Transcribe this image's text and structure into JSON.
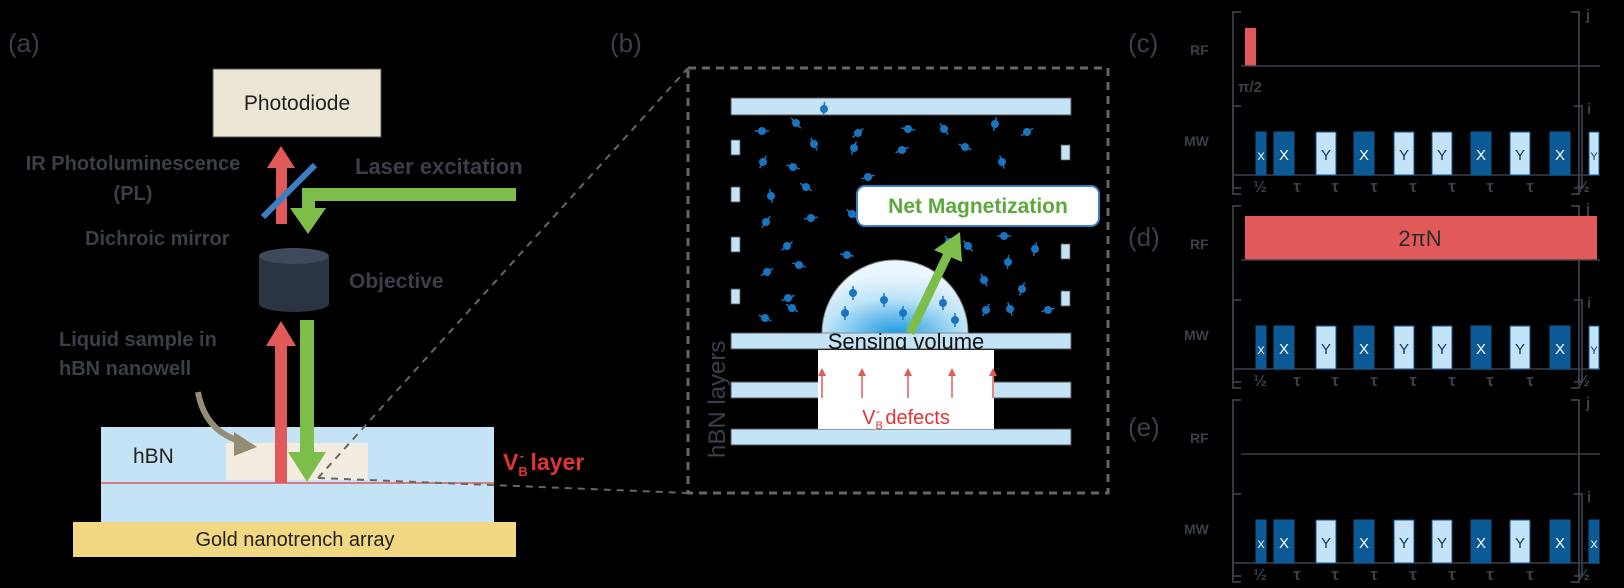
{
  "panel_a": {
    "label": "(a)",
    "photodiode": "Photodiode",
    "ir_pl_line1": "IR Photoluminescence",
    "ir_pl_line2": "(PL)",
    "laser": "Laser excitation",
    "dichroic": "Dichroic mirror",
    "objective": "Objective",
    "liquid_line1": "Liquid sample in",
    "liquid_line2": "hBN nanowell",
    "hbn": "hBN",
    "vb_main": "V",
    "vb_sub": "B",
    "vb_sup": "-",
    "vb_rest": " layer",
    "gold": "Gold nanotrench array"
  },
  "panel_b": {
    "label": "(b)",
    "net_mag": "Net Magnetization",
    "sensing": "Sensing volume",
    "defects_main": "V",
    "defects_sub": "B",
    "defects_sup": "-",
    "defects_rest": " defects",
    "layers": "hBN layers"
  },
  "panel_c": {
    "label": "(c)",
    "rf_pulse": "π/2"
  },
  "panel_d": {
    "label": "(d)",
    "rf_pulse": "2πN"
  },
  "panel_e": {
    "label": "(e)"
  },
  "sequence": {
    "rf": "RF",
    "mw": "MW",
    "index_j": "j",
    "index_i": "i",
    "half": "½",
    "tau": "τ",
    "pulses_cd": [
      "X",
      "X",
      "Y",
      "X",
      "Y",
      "Y",
      "X",
      "Y",
      "X",
      "Y"
    ],
    "pulses_e": [
      "X",
      "X",
      "Y",
      "X",
      "Y",
      "Y",
      "X",
      "Y",
      "X",
      "X"
    ]
  },
  "colors": {
    "red": "#e05a5a",
    "green": "#7dbd4a",
    "dark_blue": "#0b5a96",
    "light_blue": "#c5e3f7",
    "label_grey": "#3a3f4a"
  }
}
